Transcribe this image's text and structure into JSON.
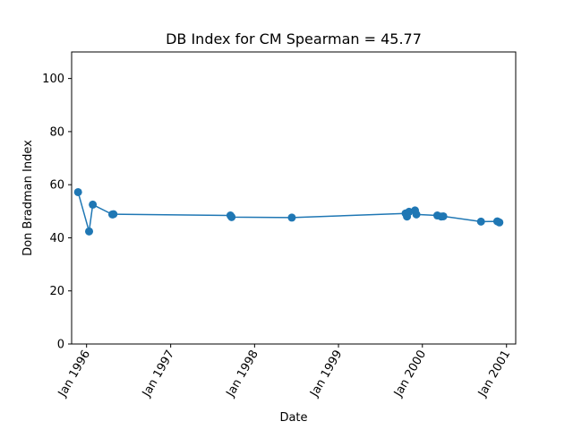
{
  "chart_data": {
    "type": "line",
    "title": "DB Index for CM Spearman = 45.77",
    "xlabel": "Date",
    "ylabel": "Don Bradman Index",
    "ylim": [
      0,
      110
    ],
    "xlim": [
      "1995-10-28",
      "2001-02-10"
    ],
    "yticks": [
      0,
      20,
      40,
      60,
      80,
      100
    ],
    "xticks": [
      {
        "date": "1996-01-01",
        "label": "Jan 1996"
      },
      {
        "date": "1997-01-01",
        "label": "Jan 1997"
      },
      {
        "date": "1998-01-01",
        "label": "Jan 1998"
      },
      {
        "date": "1999-01-01",
        "label": "Jan 1999"
      },
      {
        "date": "2000-01-01",
        "label": "Jan 2000"
      },
      {
        "date": "2001-01-01",
        "label": "Jan 2001"
      }
    ],
    "color": "#1f77b4",
    "grid": false,
    "series": [
      {
        "x": [
          "1995-11-25",
          "1996-01-12",
          "1996-01-28",
          "1996-04-22",
          "1996-04-27",
          "1997-09-18",
          "1997-09-23",
          "1998-06-12",
          "1999-10-20",
          "1999-10-26",
          "1999-11-04",
          "1999-11-30",
          "1999-12-06",
          "2000-03-06",
          "2000-03-23",
          "2000-04-01",
          "2000-09-12",
          "2000-11-22",
          "2000-12-01"
        ],
        "values": [
          57.2,
          42.4,
          52.5,
          48.8,
          48.9,
          48.4,
          47.8,
          47.6,
          49.2,
          48.0,
          49.8,
          50.3,
          48.8,
          48.4,
          48.0,
          48.1,
          46.1,
          46.2,
          45.8
        ]
      }
    ]
  }
}
